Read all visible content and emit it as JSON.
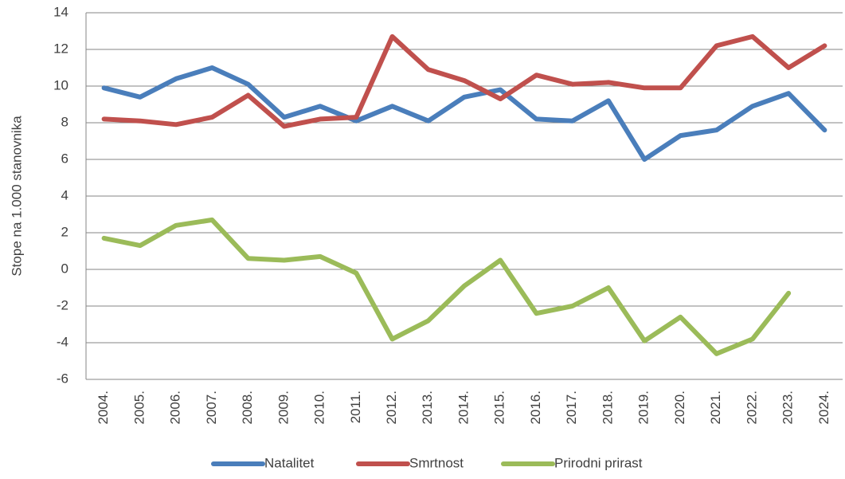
{
  "chart_data": {
    "type": "line",
    "y_label": "Stope na 1.000 stanovnika",
    "categories": [
      "2004.",
      "2005.",
      "2006.",
      "2007.",
      "2008.",
      "2009.",
      "2010.",
      "2011.",
      "2012.",
      "2013.",
      "2014.",
      "2015.",
      "2016.",
      "2017.",
      "2018.",
      "2019.",
      "2020.",
      "2021.",
      "2022.",
      "2023.",
      "2024."
    ],
    "series": [
      {
        "name": "Natalitet",
        "color": "#4a7ebb",
        "values": [
          9.9,
          9.4,
          10.4,
          11.0,
          10.1,
          8.3,
          8.9,
          8.1,
          8.9,
          8.1,
          9.4,
          9.8,
          8.2,
          8.1,
          9.2,
          6.0,
          7.3,
          7.6,
          8.9,
          9.6,
          7.6
        ]
      },
      {
        "name": "Smrtnost",
        "color": "#c0504d",
        "values": [
          8.2,
          8.1,
          7.9,
          8.3,
          9.5,
          7.8,
          8.2,
          8.3,
          12.7,
          10.9,
          10.3,
          9.3,
          10.6,
          10.1,
          10.2,
          9.9,
          9.9,
          12.2,
          12.7,
          11.0,
          12.2
        ]
      },
      {
        "name": "Prirodni prirast",
        "color": "#9bbb59",
        "values": [
          1.7,
          1.3,
          2.4,
          2.7,
          0.6,
          0.5,
          0.7,
          -0.2,
          -3.8,
          -2.8,
          -0.9,
          0.5,
          -2.4,
          -2.0,
          -1.0,
          -3.9,
          -2.6,
          -4.6,
          -3.8,
          -1.3,
          null
        ]
      }
    ],
    "ylim": [
      -6,
      14
    ],
    "yticks": [
      -6,
      -4,
      -2,
      0,
      2,
      4,
      6,
      8,
      10,
      12,
      14
    ],
    "grid": true,
    "legend": "bottom"
  }
}
